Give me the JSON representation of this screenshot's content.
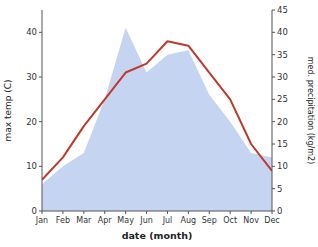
{
  "chart_data": {
    "type": "line",
    "xlabel": "date (month)",
    "ylabel": "max temp (C)",
    "y2label": "med. precipitation (kg/m2)",
    "categories": [
      "Jan",
      "Feb",
      "Mar",
      "Apr",
      "May",
      "Jun",
      "Jul",
      "Aug",
      "Sep",
      "Oct",
      "Nov",
      "Dec"
    ],
    "series": [
      {
        "type": "area",
        "axis": "y2",
        "color": "#c5d4f0",
        "values": [
          6,
          10,
          13,
          25,
          41,
          31,
          35,
          36,
          26,
          20,
          13,
          12
        ]
      },
      {
        "type": "line",
        "color": "#c0392b",
        "values": [
          7,
          12,
          19,
          25,
          31,
          33,
          38,
          37,
          31,
          25,
          15,
          9
        ]
      }
    ],
    "ylim": [
      0,
      45
    ],
    "yticks": [
      0,
      10,
      20,
      30,
      40
    ],
    "y2lim": [
      0,
      45
    ],
    "y2ticks": [
      0,
      5,
      10,
      15,
      20,
      25,
      30,
      35,
      40,
      45
    ],
    "grid": false
  }
}
